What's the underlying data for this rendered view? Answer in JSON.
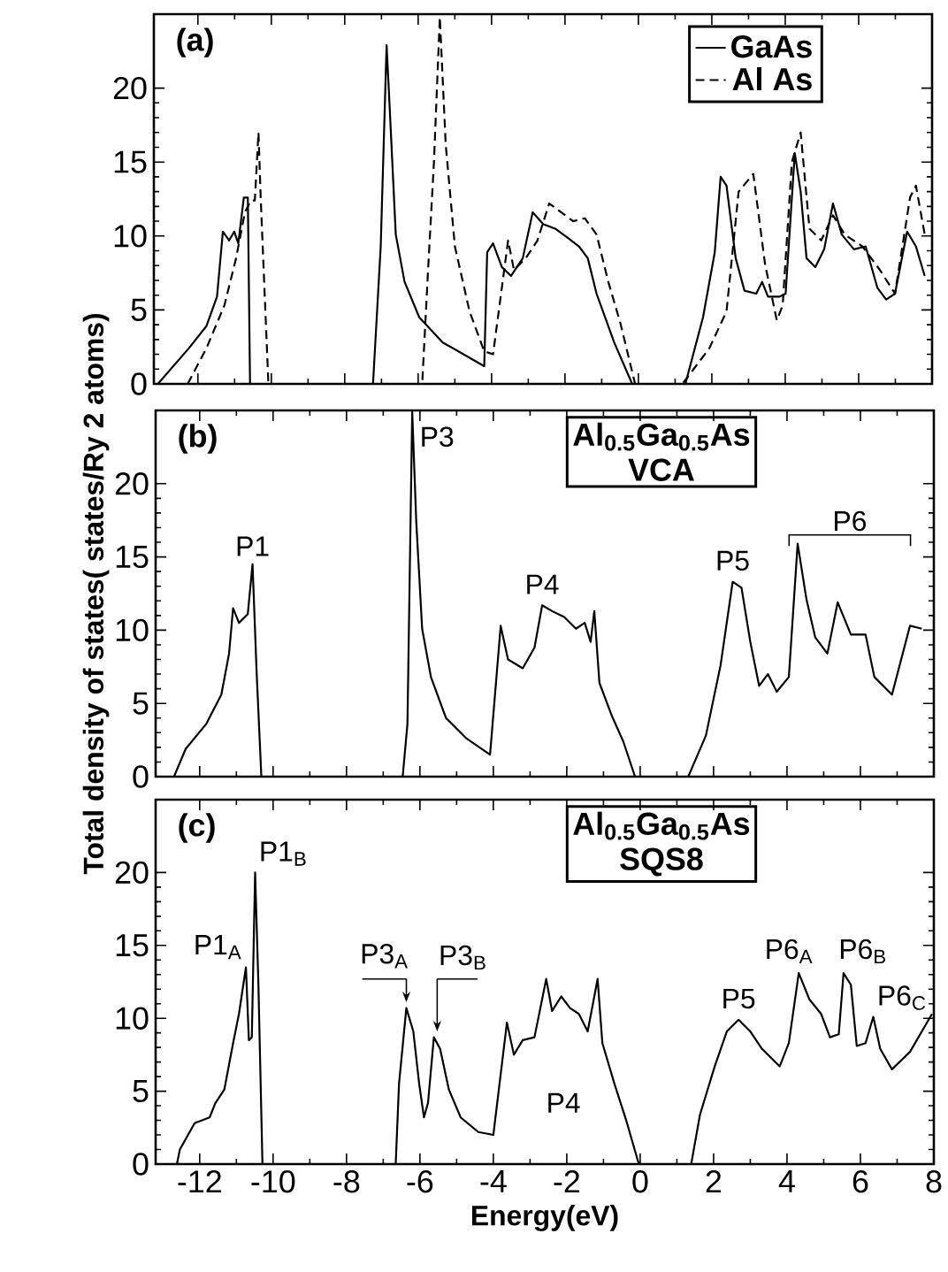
{
  "chart_data": [
    {
      "type": "line",
      "xlim": [
        -13.2,
        8
      ],
      "ylim": [
        0,
        25
      ],
      "xticks": [
        -12,
        -10,
        -8,
        -6,
        -4,
        -2,
        0,
        2,
        4,
        6,
        8
      ],
      "yticks": [
        0,
        5,
        10,
        15,
        20
      ],
      "tick_labels": "y",
      "legend": "top right",
      "annotations": [
        "(a)"
      ],
      "series": [
        {
          "name": "GaAs",
          "color": "#000000",
          "line_style": "solid",
          "x": [
            -13.09,
            -12.25,
            -11.77,
            -11.48,
            -11.32,
            -11.15,
            -11.01,
            -10.9,
            -10.75,
            -10.64,
            -10.58,
            -7.23,
            -7.02,
            -6.86,
            -6.78,
            -6.61,
            -6.37,
            -5.97,
            -5.33,
            -4.2,
            -4.12,
            -3.96,
            -3.72,
            -3.47,
            -3.15,
            -2.88,
            -2.59,
            -2.27,
            -1.94,
            -1.62,
            -1.38,
            -1.14,
            -0.66,
            -0.17,
            1.28,
            1.76,
            2.08,
            2.24,
            2.4,
            2.65,
            2.89,
            3.21,
            3.37,
            3.53,
            3.85,
            4.01,
            4.26,
            4.42,
            4.58,
            4.82,
            5.06,
            5.3,
            5.54,
            5.87,
            6.19,
            6.51,
            6.75,
            6.99,
            7.32,
            7.56,
            7.8
          ],
          "values": [
            0,
            2.4,
            3.9,
            5.9,
            10.3,
            9.7,
            10.3,
            9.5,
            12.6,
            12.6,
            0,
            0,
            9.3,
            22.9,
            18.9,
            10.1,
            6.9,
            4.5,
            2.8,
            1.2,
            8.9,
            9.5,
            7.9,
            7.3,
            8.5,
            11.6,
            10.8,
            10.5,
            9.9,
            9.3,
            8.5,
            6.1,
            2.8,
            0,
            0,
            4.5,
            8.9,
            14.0,
            13.4,
            8.5,
            6.3,
            6.1,
            6.9,
            5.9,
            5.9,
            6.1,
            15.6,
            13.0,
            8.5,
            7.9,
            9.1,
            12.2,
            10.1,
            9.1,
            9.3,
            6.5,
            5.7,
            6.1,
            10.3,
            9.3,
            7.3
          ]
        },
        {
          "name": "Al As",
          "color": "#000000",
          "line_style": "dashed",
          "x": [
            -12.28,
            -11.77,
            -11.28,
            -10.96,
            -10.72,
            -10.56,
            -10.45,
            -10.35,
            -10.29,
            -10.08,
            -5.89,
            -5.73,
            -5.57,
            -5.41,
            -5.25,
            -5.0,
            -4.6,
            -4.2,
            -3.96,
            -3.55,
            -3.39,
            -3.07,
            -2.75,
            -2.43,
            -2.1,
            -1.78,
            -1.46,
            -1.14,
            -0.82,
            -0.49,
            -0.09,
            1.2,
            1.93,
            2.4,
            2.73,
            3.13,
            3.45,
            3.77,
            3.93,
            4.18,
            4.42,
            4.66,
            4.98,
            5.3,
            5.62,
            6.1,
            6.58,
            6.99,
            7.4,
            7.56,
            7.8
          ],
          "values": [
            0,
            2.4,
            5.3,
            8.5,
            11.6,
            12.4,
            12.4,
            17.0,
            12.6,
            0,
            0,
            7.7,
            15.0,
            24.8,
            16.2,
            9.3,
            4.9,
            2.2,
            2.0,
            9.7,
            7.7,
            8.5,
            9.7,
            12.2,
            11.6,
            11.0,
            11.2,
            10.1,
            6.9,
            4.1,
            0,
            0,
            2.4,
            4.9,
            13.0,
            14.2,
            8.1,
            4.3,
            5.3,
            15.0,
            17.0,
            10.5,
            9.7,
            11.4,
            10.1,
            9.3,
            7.7,
            6.1,
            12.6,
            13.4,
            10.1
          ]
        }
      ]
    },
    {
      "type": "line",
      "xlim": [
        -13.2,
        8
      ],
      "ylim": [
        0,
        25
      ],
      "xticks": [
        -12,
        -10,
        -8,
        -6,
        -4,
        -2,
        0,
        2,
        4,
        6,
        8
      ],
      "yticks": [
        0,
        5,
        10,
        15,
        20
      ],
      "tick_labels": "y",
      "ylabel": "Total density of states( states/Ry 2 atoms)",
      "annotations": [
        "(b)",
        "Al$_{0.5}$Ga$_{0.5}$As",
        "VCA",
        {
          "text": "P1",
          "x": -10.56,
          "y": 14.6
        },
        {
          "text": "P3",
          "x": -6.21,
          "y": 23
        },
        {
          "text": "P4",
          "x": -2.67,
          "y": 12
        },
        {
          "text": "P5",
          "x": 2.52,
          "y": 13.6
        },
        "P6"
      ],
      "series": [
        {
          "color": "#000000",
          "x": [
            -12.7,
            -12.38,
            -11.82,
            -11.41,
            -11.2,
            -11.09,
            -10.93,
            -10.69,
            -10.56,
            -10.45,
            -10.32,
            -6.47,
            -6.34,
            -6.21,
            -6.1,
            -5.94,
            -5.7,
            -5.29,
            -4.73,
            -4.09,
            -3.8,
            -3.6,
            -3.2,
            -2.88,
            -2.67,
            -2.4,
            -2.07,
            -1.75,
            -1.51,
            -1.35,
            -1.25,
            -1.11,
            -0.78,
            -0.46,
            -0.14,
            1.31,
            1.79,
            2.19,
            2.52,
            2.76,
            3.0,
            3.24,
            3.48,
            3.72,
            4.05,
            4.29,
            4.53,
            4.77,
            5.1,
            5.38,
            5.74,
            6.14,
            6.38,
            6.86,
            7.35,
            7.67
          ],
          "values": [
            0,
            1.9,
            3.6,
            5.6,
            8.4,
            11.5,
            10.5,
            11.1,
            14.5,
            7.2,
            0,
            0,
            3.6,
            24.9,
            17.4,
            10.1,
            6.8,
            4.0,
            2.6,
            1.5,
            10.3,
            8.0,
            7.4,
            8.8,
            11.7,
            11.3,
            10.9,
            10.1,
            10.5,
            9.2,
            11.3,
            6.4,
            4.2,
            2.4,
            0,
            0,
            2.8,
            7.6,
            13.3,
            12.9,
            9.2,
            6.2,
            7.0,
            5.8,
            6.8,
            15.9,
            12.1,
            9.5,
            8.4,
            11.9,
            9.7,
            9.7,
            6.8,
            5.6,
            10.3,
            10.1
          ]
        }
      ]
    },
    {
      "type": "line",
      "xlim": [
        -13.2,
        8
      ],
      "ylim": [
        0,
        25
      ],
      "xticks": [
        -12,
        -10,
        -8,
        -6,
        -4,
        -2,
        0,
        2,
        4,
        6,
        8
      ],
      "yticks": [
        0,
        5,
        10,
        15,
        20
      ],
      "xlabel": "Energy(eV)",
      "annotations": [
        "(c)",
        "Al$_{0.5}$Ga$_{0.5}$As",
        "SQS8",
        {
          "text": "P1$_{A}$",
          "x": -10.74,
          "y": 13.6
        },
        {
          "text": "P1$_{B}$",
          "x": -10.49,
          "y": 20
        },
        {
          "text": "P3$_{A}$",
          "x": -6.37,
          "y": 11.1
        },
        {
          "text": "P3$_{B}$",
          "x": -5.53,
          "y": 9.1
        },
        "P4",
        {
          "text": "P5",
          "x": 2.68,
          "y": 10.2
        },
        {
          "text": "P6$_{A}$",
          "x": 4.32,
          "y": 13.3
        },
        {
          "text": "P6$_{B}$",
          "x": 5.6,
          "y": 13.3
        },
        {
          "text": "P6$_{C}$",
          "x": 6.35,
          "y": 10.1
        }
      ],
      "series": [
        {
          "color": "#000000",
          "x": [
            -12.62,
            -12.54,
            -12.14,
            -11.73,
            -11.57,
            -11.33,
            -11.09,
            -10.93,
            -10.8,
            -10.74,
            -10.66,
            -10.58,
            -10.49,
            -10.4,
            -10.29,
            -6.66,
            -6.57,
            -6.37,
            -6.18,
            -6.02,
            -5.89,
            -5.78,
            -5.62,
            -5.45,
            -5.21,
            -4.89,
            -4.41,
            -4.0,
            -3.63,
            -3.44,
            -3.2,
            -2.88,
            -2.56,
            -2.4,
            -2.15,
            -1.91,
            -1.67,
            -1.43,
            -1.16,
            -1.03,
            -0.7,
            -0.38,
            -0.06,
            -0.03,
            1.39,
            1.63,
            2.03,
            2.36,
            2.68,
            3.0,
            3.32,
            3.8,
            4.05,
            4.32,
            4.61,
            4.93,
            5.17,
            5.41,
            5.54,
            5.74,
            5.9,
            6.14,
            6.35,
            6.54,
            6.86,
            7.35,
            7.95
          ],
          "values": [
            0,
            1.0,
            2.8,
            3.2,
            4.2,
            5.1,
            8.3,
            10.3,
            12.5,
            13.5,
            8.5,
            8.7,
            20.0,
            12.3,
            0,
            0,
            5.5,
            10.7,
            9.1,
            5.5,
            3.2,
            4.2,
            8.7,
            7.9,
            5.1,
            3.2,
            2.2,
            2.0,
            9.7,
            7.5,
            8.5,
            8.7,
            12.7,
            10.5,
            11.5,
            10.7,
            10.3,
            9.1,
            12.7,
            8.3,
            5.5,
            3.0,
            0.2,
            0,
            0,
            3.4,
            6.7,
            9.1,
            9.9,
            9.1,
            7.9,
            6.7,
            8.3,
            13.1,
            11.3,
            10.3,
            8.7,
            8.9,
            13.1,
            12.3,
            8.1,
            8.3,
            10.1,
            7.9,
            6.5,
            7.7,
            10.3
          ]
        }
      ]
    }
  ]
}
